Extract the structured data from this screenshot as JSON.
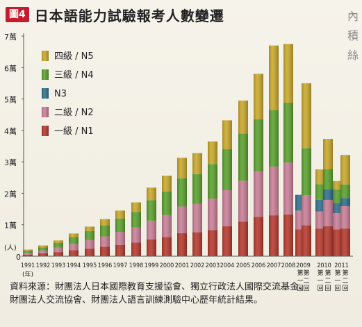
{
  "header": {
    "figure_badge": "圖4",
    "title": "日本語能力試驗報考人數變遷"
  },
  "side_text": [
    "內",
    "積",
    "絲"
  ],
  "source_note": {
    "line1": "資料來源：財團法人日本國際教育支援協會、獨立行政法人國際交流基金、",
    "line2": "財團法人交流協會、財團法人語言訓練測驗中心歷年統計結果。"
  },
  "chart_data": {
    "type": "bar",
    "stacked": true,
    "title": "日本語能力試驗報考人數變遷",
    "ylabel": "(人)",
    "ylim": [
      0,
      70000
    ],
    "yticks": [
      "0",
      "1萬",
      "2萬",
      "3萬",
      "4萬",
      "5萬",
      "6萬",
      "7萬"
    ],
    "grid": false,
    "legend_position": "top-left",
    "colors": {
      "N5": "#c9a82a",
      "N4": "#5aa02c",
      "N3": "#2f6f8a",
      "N2": "#c97d96",
      "N1": "#b5382c"
    },
    "categories": [
      {
        "label": "1991",
        "sub": "(年)"
      },
      {
        "label": "1992"
      },
      {
        "label": "1993"
      },
      {
        "label": "1994"
      },
      {
        "label": "1995"
      },
      {
        "label": "1996"
      },
      {
        "label": "1997"
      },
      {
        "label": "1998"
      },
      {
        "label": "1999"
      },
      {
        "label": "2000"
      },
      {
        "label": "2001"
      },
      {
        "label": "2002"
      },
      {
        "label": "2003"
      },
      {
        "label": "2004"
      },
      {
        "label": "2005"
      },
      {
        "label": "2006"
      },
      {
        "label": "2007"
      },
      {
        "label": "2008"
      },
      {
        "label": "2009",
        "sub_left": "第一回",
        "sub_right": "第二回"
      },
      {
        "label": "2009"
      },
      {
        "label": "2010",
        "sub_left": "第一回",
        "sub_right": "第二回"
      },
      {
        "label": "2010"
      },
      {
        "label": "2011",
        "sub_left": "第一回",
        "sub_right": "第二回"
      },
      {
        "label": "2011"
      }
    ],
    "series": [
      {
        "name": "一級 / N1",
        "key": "N1",
        "values": [
          500,
          900,
          1300,
          1900,
          2400,
          3000,
          3600,
          4300,
          5300,
          6100,
          7300,
          7600,
          8300,
          9500,
          11000,
          12500,
          13000,
          13300,
          8500,
          9800,
          8800,
          9500,
          8500,
          8800
        ]
      },
      {
        "name": "二級 / N2",
        "key": "N2",
        "values": [
          600,
          900,
          1400,
          2000,
          2700,
          3300,
          4100,
          4800,
          6000,
          7000,
          8500,
          9000,
          10000,
          11500,
          13000,
          14500,
          15500,
          16500,
          6000,
          9600,
          5400,
          8400,
          5200,
          7100
        ]
      },
      {
        "name": "N3",
        "key": "N3",
        "values": [
          0,
          0,
          0,
          0,
          0,
          0,
          0,
          0,
          0,
          0,
          0,
          0,
          0,
          0,
          0,
          0,
          0,
          0,
          5000,
          0,
          3700,
          3300,
          3200,
          2600
        ]
      },
      {
        "name": "三級 / N4",
        "key": "N4",
        "values": [
          600,
          1000,
          1500,
          2200,
          2900,
          3500,
          4300,
          5000,
          6500,
          7500,
          9000,
          9500,
          11000,
          13000,
          15000,
          16500,
          18000,
          19000,
          0,
          15000,
          5000,
          6500,
          4300,
          4300
        ]
      },
      {
        "name": "四級 / N5",
        "key": "N5",
        "values": [
          400,
          600,
          800,
          1100,
          1400,
          2000,
          2500,
          3000,
          4000,
          5000,
          6500,
          6700,
          7200,
          9200,
          10500,
          14500,
          20500,
          18700,
          0,
          20600,
          4700,
          9600,
          2700,
          9400
        ]
      }
    ]
  }
}
